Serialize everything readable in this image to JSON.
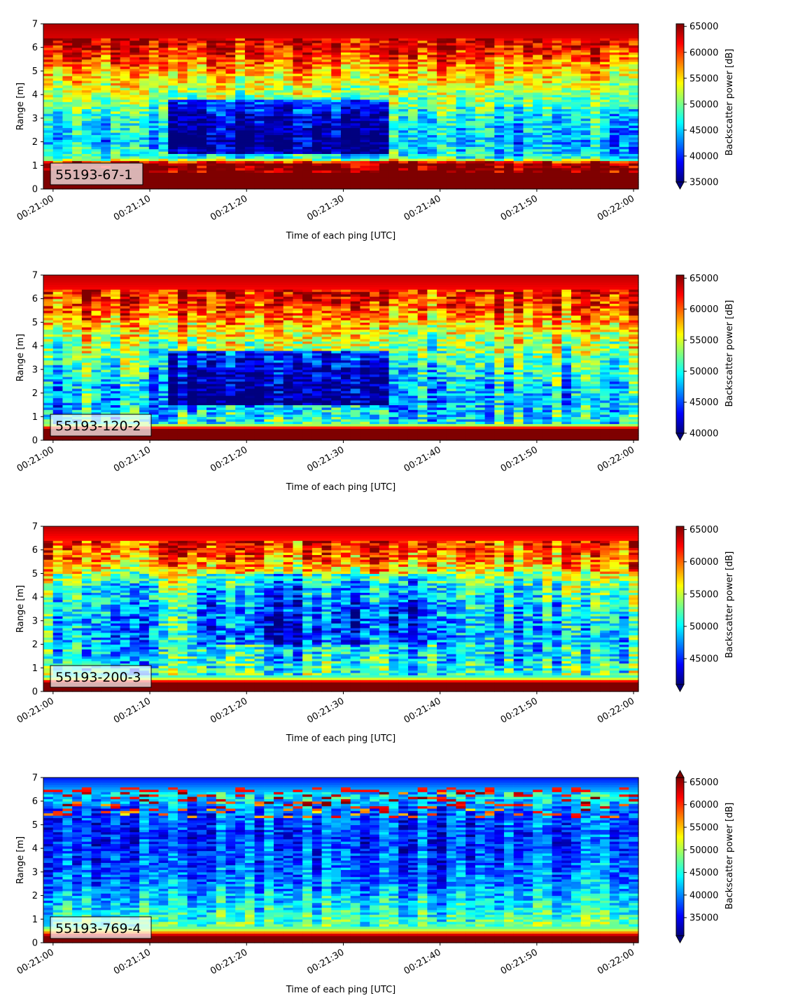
{
  "figure": {
    "colormap": "jet",
    "colormap_stops": [
      "#00007f",
      "#0000ff",
      "#007fff",
      "#00ffff",
      "#7fff7f",
      "#ffff00",
      "#ff7f00",
      "#ff0000",
      "#7f0000"
    ]
  },
  "chart_data": [
    {
      "type": "heatmap",
      "annotation": "55193-67-1",
      "xlabel": "Time of each ping [UTC]",
      "ylabel": "Range [m]",
      "colorbar_label": "Backscatter power [dB]",
      "x_start": "00:21:00",
      "x_end": "00:22:00",
      "x_ticks": [
        "00:21:00",
        "00:21:10",
        "00:21:20",
        "00:21:30",
        "00:21:40",
        "00:21:50",
        "00:22:00"
      ],
      "ylim": [
        0,
        7
      ],
      "y_ticks": [
        0,
        1,
        2,
        3,
        4,
        5,
        6,
        7
      ],
      "clim": [
        35000,
        65500
      ],
      "colorbar_ticks": [
        35000,
        40000,
        45000,
        50000,
        55000,
        60000,
        65000
      ],
      "colorbar_extend": "min",
      "n_pings": 62,
      "n_range_bins": 70,
      "mean_profile": [
        {
          "range": 0.2,
          "value": 65500
        },
        {
          "range": 1.1,
          "value": 65500
        },
        {
          "range": 1.3,
          "value": 47000
        },
        {
          "range": 2.0,
          "value": 44000
        },
        {
          "range": 3.0,
          "value": 46000
        },
        {
          "range": 4.0,
          "value": 51000
        },
        {
          "range": 5.0,
          "value": 56000
        },
        {
          "range": 6.0,
          "value": 62000
        },
        {
          "range": 7.0,
          "value": 64000
        }
      ],
      "spatial_note": "low-backscatter pocket ~1.5–3.8 m between 00:21:12 and 00:21:35"
    },
    {
      "type": "heatmap",
      "annotation": "55193-120-2",
      "xlabel": "Time of each ping [UTC]",
      "ylabel": "Range [m]",
      "colorbar_label": "Backscatter power [dB]",
      "x_start": "00:21:00",
      "x_end": "00:22:00",
      "x_ticks": [
        "00:21:00",
        "00:21:10",
        "00:21:20",
        "00:21:30",
        "00:21:40",
        "00:21:50",
        "00:22:00"
      ],
      "ylim": [
        0,
        7
      ],
      "y_ticks": [
        0,
        1,
        2,
        3,
        4,
        5,
        6,
        7
      ],
      "clim": [
        40000,
        65500
      ],
      "colorbar_ticks": [
        40000,
        45000,
        50000,
        55000,
        60000,
        65000
      ],
      "colorbar_extend": "min",
      "n_pings": 62,
      "n_range_bins": 70,
      "mean_profile": [
        {
          "range": 0.1,
          "value": 65500
        },
        {
          "range": 0.5,
          "value": 65500
        },
        {
          "range": 0.7,
          "value": 50000
        },
        {
          "range": 1.5,
          "value": 48000
        },
        {
          "range": 2.5,
          "value": 49000
        },
        {
          "range": 3.5,
          "value": 52000
        },
        {
          "range": 4.5,
          "value": 55000
        },
        {
          "range": 5.5,
          "value": 60000
        },
        {
          "range": 7.0,
          "value": 64000
        }
      ],
      "spatial_note": "low-backscatter pocket ~1.5–3.8 m between 00:21:12 and 00:21:35"
    },
    {
      "type": "heatmap",
      "annotation": "55193-200-3",
      "xlabel": "Time of each ping [UTC]",
      "ylabel": "Range [m]",
      "colorbar_label": "Backscatter power [dB]",
      "x_start": "00:21:00",
      "x_end": "00:22:00",
      "x_ticks": [
        "00:21:00",
        "00:21:10",
        "00:21:20",
        "00:21:30",
        "00:21:40",
        "00:21:50",
        "00:22:00"
      ],
      "ylim": [
        0,
        7
      ],
      "y_ticks": [
        0,
        1,
        2,
        3,
        4,
        5,
        6,
        7
      ],
      "clim": [
        41000,
        65500
      ],
      "colorbar_ticks": [
        45000,
        50000,
        55000,
        60000,
        65000
      ],
      "colorbar_extend": "min",
      "n_pings": 62,
      "n_range_bins": 70,
      "mean_profile": [
        {
          "range": 0.1,
          "value": 65500
        },
        {
          "range": 0.4,
          "value": 65500
        },
        {
          "range": 0.6,
          "value": 52000
        },
        {
          "range": 1.5,
          "value": 50000
        },
        {
          "range": 2.5,
          "value": 49000
        },
        {
          "range": 3.5,
          "value": 50000
        },
        {
          "range": 4.5,
          "value": 52000
        },
        {
          "range": 5.5,
          "value": 59000
        },
        {
          "range": 7.0,
          "value": 64000
        }
      ],
      "spatial_note": "lower backscatter ~2–5 m between 00:21:15 and 00:21:40"
    },
    {
      "type": "heatmap",
      "annotation": "55193-769-4",
      "xlabel": "Time of each ping [UTC]",
      "ylabel": "Range [m]",
      "colorbar_label": "Backscatter power [dB]",
      "x_start": "00:21:00",
      "x_end": "00:22:00",
      "x_ticks": [
        "00:21:00",
        "00:21:10",
        "00:21:20",
        "00:21:30",
        "00:21:40",
        "00:21:50",
        "00:22:00"
      ],
      "ylim": [
        0,
        7
      ],
      "y_ticks": [
        0,
        1,
        2,
        3,
        4,
        5,
        6,
        7
      ],
      "clim": [
        31000,
        66000
      ],
      "colorbar_ticks": [
        35000,
        40000,
        45000,
        50000,
        55000,
        60000,
        65000
      ],
      "colorbar_extend": "both",
      "n_pings": 62,
      "n_range_bins": 70,
      "mean_profile": [
        {
          "range": 0.1,
          "value": 66000
        },
        {
          "range": 0.3,
          "value": 66000
        },
        {
          "range": 0.6,
          "value": 48000
        },
        {
          "range": 1.5,
          "value": 44000
        },
        {
          "range": 2.5,
          "value": 40000
        },
        {
          "range": 3.5,
          "value": 38000
        },
        {
          "range": 4.5,
          "value": 37000
        },
        {
          "range": 5.5,
          "value": 38000
        },
        {
          "range": 6.2,
          "value": 44000
        },
        {
          "range": 7.0,
          "value": 36000
        }
      ],
      "spatial_note": "mostly low backscatter; sparse high streaks near 5.5–6.5 m"
    }
  ]
}
